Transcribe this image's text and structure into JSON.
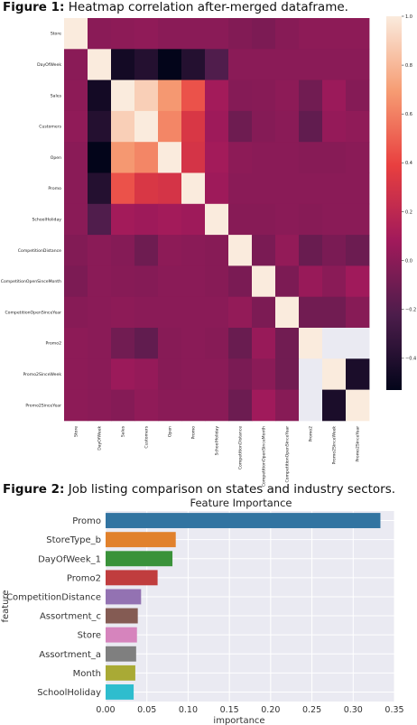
{
  "figure1": {
    "caption_label": "Figure 1:",
    "caption_text": "Heatmap correlation after-merged dataframe."
  },
  "figure2": {
    "caption_label": "Figure 2:",
    "caption_text": "Job listing comparison on states and industry sectors."
  },
  "chart_data": [
    {
      "type": "heatmap",
      "labels": [
        "Store",
        "DayOfWeek",
        "Sales",
        "Customers",
        "Open",
        "Promo",
        "SchoolHoliday",
        "CompetitionDistance",
        "CompetitionOpenSinceMonth",
        "CompetitionOpenSinceYear",
        "Promo2",
        "Promo2SinceWeek",
        "Promo2SinceYear"
      ],
      "matrix": [
        [
          1.0,
          0.0,
          0.01,
          0.02,
          0.0,
          0.0,
          0.0,
          -0.03,
          -0.05,
          -0.01,
          0.01,
          0.01,
          0.01
        ],
        [
          0.0,
          1.0,
          -0.46,
          -0.39,
          -0.53,
          -0.39,
          -0.21,
          0.0,
          0.0,
          0.0,
          0.0,
          0.0,
          0.0
        ],
        [
          0.01,
          -0.46,
          1.0,
          0.89,
          0.68,
          0.45,
          0.09,
          -0.02,
          -0.01,
          0.01,
          -0.09,
          0.06,
          -0.02
        ],
        [
          0.02,
          -0.39,
          0.89,
          1.0,
          0.62,
          0.32,
          0.07,
          -0.1,
          -0.02,
          0.0,
          -0.15,
          0.04,
          0.02
        ],
        [
          0.0,
          -0.53,
          0.68,
          0.62,
          1.0,
          0.3,
          0.09,
          0.01,
          0.0,
          0.0,
          -0.01,
          -0.01,
          0.0
        ],
        [
          0.0,
          -0.39,
          0.45,
          0.32,
          0.3,
          1.0,
          0.07,
          0.0,
          0.0,
          0.0,
          0.0,
          0.0,
          0.0
        ],
        [
          0.0,
          -0.21,
          0.09,
          0.07,
          0.09,
          0.07,
          1.0,
          -0.01,
          -0.01,
          0.0,
          -0.01,
          0.0,
          0.0
        ],
        [
          -0.03,
          0.0,
          -0.02,
          -0.1,
          0.01,
          0.0,
          -0.01,
          1.0,
          -0.06,
          0.03,
          -0.12,
          -0.06,
          -0.11
        ],
        [
          -0.05,
          0.0,
          -0.01,
          -0.02,
          0.0,
          0.0,
          -0.01,
          -0.06,
          1.0,
          -0.05,
          0.05,
          0.0,
          0.08
        ],
        [
          -0.01,
          0.0,
          0.01,
          0.0,
          0.0,
          0.0,
          0.0,
          0.03,
          -0.05,
          1.0,
          -0.09,
          -0.09,
          -0.01
        ],
        [
          0.01,
          0.0,
          -0.09,
          -0.15,
          -0.01,
          0.0,
          -0.01,
          -0.12,
          0.05,
          -0.09,
          1.0,
          null,
          null
        ],
        [
          0.01,
          0.0,
          0.06,
          0.04,
          -0.01,
          0.0,
          0.0,
          -0.06,
          0.0,
          -0.09,
          null,
          1.0,
          -0.43
        ],
        [
          0.01,
          0.0,
          -0.02,
          0.02,
          0.0,
          0.0,
          0.0,
          -0.11,
          0.08,
          -0.01,
          null,
          -0.43,
          1.0
        ]
      ],
      "colorbar": {
        "range": [
          -0.53,
          1.0
        ],
        "ticks": [
          -0.4,
          -0.2,
          0,
          0.2,
          0.4,
          0.6,
          0.8,
          1.0
        ],
        "tick_labels": [
          "−0.4",
          "−0.2",
          "0.0",
          "0.2",
          "0.4",
          "0.6",
          "0.8",
          "1.0"
        ],
        "colors": [
          "#03051a",
          "#4c1d4b",
          "#a11a5b",
          "#e83f3f",
          "#f69c73",
          "#faebdd"
        ]
      }
    },
    {
      "type": "bar",
      "orientation": "horizontal",
      "title": "Feature Importance",
      "xlabel": "importance",
      "ylabel": "feature",
      "categories": [
        "Promo",
        "StoreType_b",
        "DayOfWeek_1",
        "Promo2",
        "CompetitionDistance",
        "Assortment_c",
        "Store",
        "Assortment_a",
        "Month",
        "SchoolHoliday"
      ],
      "values": [
        0.333,
        0.085,
        0.081,
        0.063,
        0.043,
        0.039,
        0.038,
        0.037,
        0.036,
        0.034
      ],
      "colors": [
        "#3274a1",
        "#e1812c",
        "#3a923a",
        "#c03d3e",
        "#9372b2",
        "#845b53",
        "#d684bd",
        "#7f7f7f",
        "#a9aa35",
        "#2ebdce"
      ],
      "xlim": [
        0,
        0.35
      ],
      "xticks": [
        0.0,
        0.05,
        0.1,
        0.15,
        0.2,
        0.25,
        0.3,
        0.35
      ],
      "xtick_labels": [
        "0.00",
        "0.05",
        "0.10",
        "0.15",
        "0.20",
        "0.25",
        "0.30",
        "0.35"
      ],
      "grid": true,
      "background": "#eaeaf2"
    }
  ]
}
